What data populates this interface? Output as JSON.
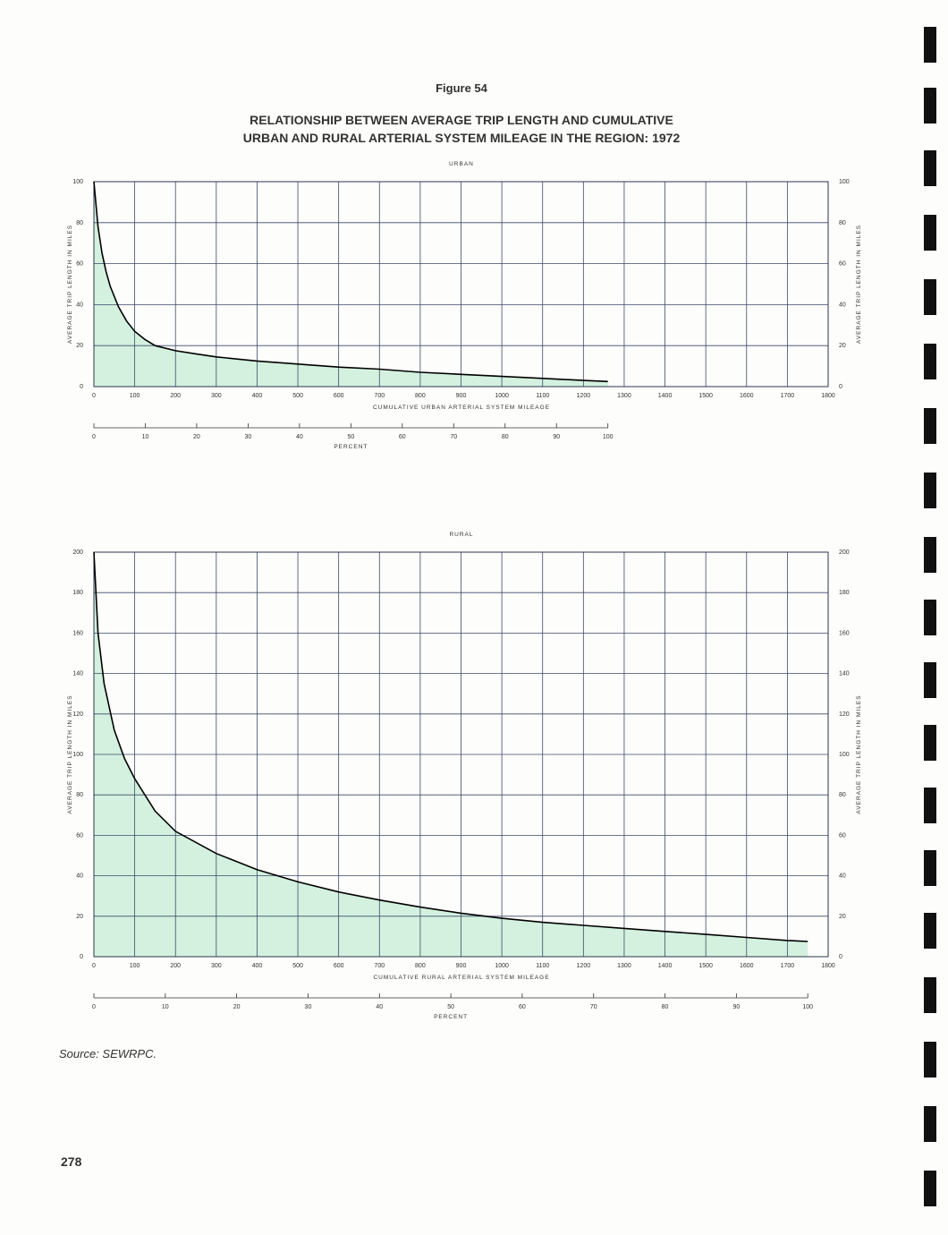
{
  "figure": "Figure 54",
  "title": [
    "RELATIONSHIP BETWEEN AVERAGE TRIP LENGTH AND CUMULATIVE",
    "URBAN AND RURAL ARTERIAL SYSTEM MILEAGE IN THE REGION: 1972"
  ],
  "source": "Source:  SEWRPC.",
  "page_number": "278",
  "chart_data": [
    {
      "type": "area",
      "title": "URBAN",
      "x_label": "CUMULATIVE URBAN ARTERIAL SYSTEM MILEAGE",
      "y_label": "AVERAGE TRIP LENGTH IN MILES",
      "percent_label": "PERCENT",
      "percent_ticks": [
        0,
        10,
        20,
        30,
        40,
        50,
        60,
        70,
        80,
        90,
        100
      ],
      "x": [
        0,
        10,
        20,
        30,
        40,
        60,
        80,
        100,
        125,
        150,
        200,
        250,
        300,
        400,
        500,
        600,
        700,
        800,
        900,
        1000,
        1100,
        1200,
        1260
      ],
      "values": [
        100,
        78,
        65,
        56,
        49,
        39,
        32,
        27,
        23,
        20,
        17.5,
        16,
        14.5,
        12.5,
        11,
        9.5,
        8.5,
        7,
        6,
        5,
        4,
        3,
        2.5
      ],
      "color": "#000000",
      "fill_color": "#d3f1de",
      "xlim": [
        0,
        1800
      ],
      "xticks": [
        0,
        100,
        200,
        300,
        400,
        500,
        600,
        700,
        800,
        900,
        1000,
        1100,
        1200,
        1300,
        1400,
        1500,
        1600,
        1700,
        1800
      ],
      "ylim": [
        0,
        100
      ],
      "yticks": [
        0,
        20,
        40,
        60,
        80,
        100
      ],
      "grid": true
    },
    {
      "type": "area",
      "title": "RURAL",
      "x_label": "CUMULATIVE RURAL ARTERIAL SYSTEM MILEAGE",
      "y_label": "AVERAGE TRIP LENGTH IN MILES",
      "percent_label": "PERCENT",
      "percent_ticks": [
        0,
        10,
        20,
        30,
        40,
        50,
        60,
        70,
        80,
        90,
        100
      ],
      "x": [
        0,
        10,
        25,
        50,
        75,
        100,
        150,
        200,
        300,
        400,
        500,
        600,
        700,
        800,
        900,
        1000,
        1100,
        1200,
        1300,
        1400,
        1500,
        1600,
        1700,
        1750
      ],
      "values": [
        200,
        160,
        135,
        112,
        98,
        88,
        72,
        62,
        51,
        43,
        37,
        32,
        28,
        24.5,
        21.5,
        19,
        17,
        15.5,
        14,
        12.5,
        11,
        9.5,
        8,
        7.5
      ],
      "color": "#000000",
      "fill_color": "#d3f1de",
      "xlim": [
        0,
        1800
      ],
      "xticks": [
        0,
        100,
        200,
        300,
        400,
        500,
        600,
        700,
        800,
        900,
        1000,
        1100,
        1200,
        1300,
        1400,
        1500,
        1600,
        1700,
        1800
      ],
      "ylim": [
        0,
        200
      ],
      "yticks": [
        0,
        20,
        40,
        60,
        80,
        100,
        120,
        140,
        160,
        180,
        200
      ],
      "grid": true
    }
  ]
}
